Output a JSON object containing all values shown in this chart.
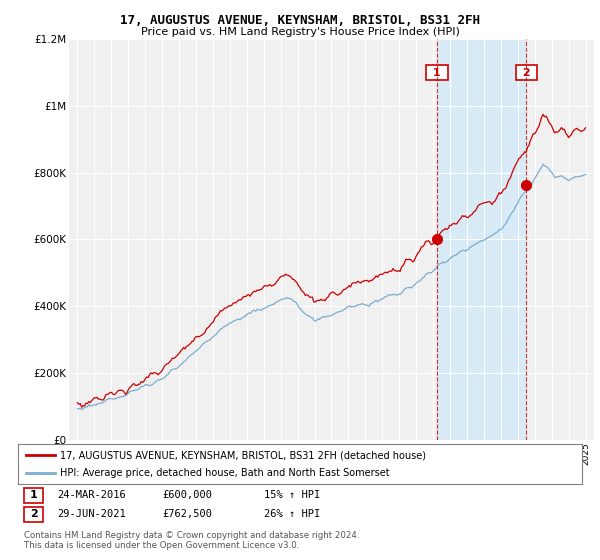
{
  "title": "17, AUGUSTUS AVENUE, KEYNSHAM, BRISTOL, BS31 2FH",
  "subtitle": "Price paid vs. HM Land Registry's House Price Index (HPI)",
  "ylim": [
    0,
    1200000
  ],
  "yticks": [
    0,
    200000,
    400000,
    600000,
    800000,
    1000000,
    1200000
  ],
  "ytick_labels": [
    "£0",
    "£200K",
    "£400K",
    "£600K",
    "£800K",
    "£1M",
    "£1.2M"
  ],
  "red_color": "#cc0000",
  "blue_color": "#7aadcf",
  "shade_color": "#d8eaf5",
  "marker1_x": 2016.23,
  "marker2_x": 2021.5,
  "marker1_price": 600000,
  "marker2_price": 762500,
  "legend_red_label": "17, AUGUSTUS AVENUE, KEYNSHAM, BRISTOL, BS31 2FH (detached house)",
  "legend_blue_label": "HPI: Average price, detached house, Bath and North East Somerset",
  "table_row1": [
    "1",
    "24-MAR-2016",
    "£600,000",
    "15% ↑ HPI"
  ],
  "table_row2": [
    "2",
    "29-JUN-2021",
    "£762,500",
    "26% ↑ HPI"
  ],
  "footer": "Contains HM Land Registry data © Crown copyright and database right 2024.\nThis data is licensed under the Open Government Licence v3.0.",
  "background_color": "#ffffff",
  "plot_bg_color": "#f0f0f0"
}
